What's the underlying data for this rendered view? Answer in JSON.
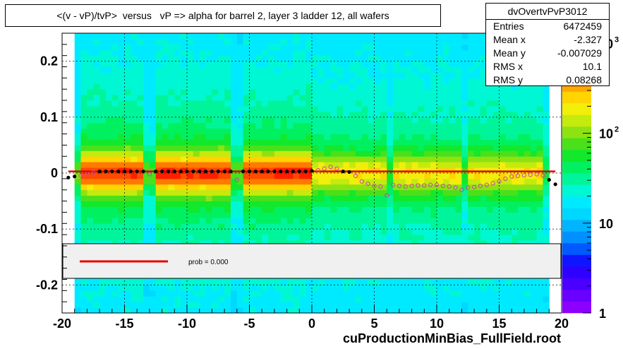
{
  "title": "<(v - vP)/tvP>  versus   vP => alpha for barrel 2, layer 3 ladder 12, all wafers",
  "stats": {
    "name": "dvOvertvPvP3012",
    "rows": [
      {
        "label": "Entries",
        "value": "6472459"
      },
      {
        "label": "Mean x",
        "value": "-2.327"
      },
      {
        "label": "Mean y",
        "value": "-0.007029"
      },
      {
        "label": "RMS x",
        "value": "10.1"
      },
      {
        "label": "RMS y",
        "value": "0.08268"
      }
    ]
  },
  "legend": {
    "label": "prob = 0.000",
    "line_color": "#e60000"
  },
  "footer": "cuProductionMinBias_FullField.root",
  "colorbar": {
    "labels": [
      "1",
      "10",
      "10",
      "10"
    ],
    "exponents": [
      "",
      "",
      "2",
      "3"
    ],
    "colors": [
      "#8c00ff",
      "#6a00ff",
      "#4a00ff",
      "#2d00ff",
      "#0f16ff",
      "#005aff",
      "#0090ff",
      "#00b4ff",
      "#00d7ff",
      "#00eaff",
      "#00f7d4",
      "#00f59a",
      "#00f060",
      "#12e82c",
      "#4ae01a",
      "#8de212",
      "#c4ea0e",
      "#f2ee0a",
      "#ffd400",
      "#ffa800",
      "#ff7a00",
      "#ff4a00",
      "#ff1e00",
      "#e60000"
    ]
  },
  "colors": {
    "profile_points": "#000000",
    "profile_open": "#cc44aa",
    "fit_line": "#e60000",
    "legend_fill": "#f0f0f0"
  },
  "chart_data": {
    "type": "heatmap",
    "title": "<(v - vP)/tvP>  versus   vP => alpha for barrel 2, layer 3 ladder 12, all wafers",
    "xlabel": "",
    "ylabel": "",
    "xlim": [
      -20,
      20
    ],
    "ylim": [
      -0.25,
      0.25
    ],
    "x_ticks": [
      "-20",
      "-15",
      "-10",
      "-5",
      "0",
      "5",
      "10",
      "15",
      "20"
    ],
    "y_ticks": [
      "-0.2",
      "-0.1",
      "0",
      "0.1",
      "0.2"
    ],
    "z_scale": "log",
    "z_range": [
      1,
      1300
    ],
    "grid": true,
    "profile": {
      "name": "profile",
      "x": [
        -19.5,
        -19.0,
        -18.5,
        -18.0,
        -17.5,
        -17.0,
        -16.5,
        -16.0,
        -15.5,
        -15.0,
        -14.5,
        -14.0,
        -13.5,
        -13.0,
        -12.5,
        -12.0,
        -11.5,
        -11.0,
        -10.5,
        -10.0,
        -9.5,
        -9.0,
        -8.5,
        -8.0,
        -7.5,
        -7.0,
        -6.5,
        -6.0,
        -5.5,
        -5.0,
        -4.5,
        -4.0,
        -3.5,
        -3.0,
        -2.5,
        -2.0,
        -1.5,
        -1.0,
        -0.5,
        0.0,
        0.5,
        1.0,
        1.5,
        2.0,
        2.5,
        3.0,
        3.5,
        4.0,
        4.5,
        5.0,
        5.5,
        6.0,
        6.5,
        7.0,
        7.5,
        8.0,
        8.5,
        9.0,
        9.5,
        10.0,
        10.5,
        11.0,
        11.5,
        12.0,
        12.5,
        13.0,
        13.5,
        14.0,
        14.5,
        15.0,
        15.5,
        16.0,
        16.5,
        17.0,
        17.5,
        18.0,
        18.5,
        19.0,
        19.5
      ],
      "y": [
        -0.008,
        -0.006,
        -0.005,
        -0.002,
        0.001,
        0.003,
        0.003,
        0.003,
        0.003,
        0.003,
        0.003,
        0.003,
        0.003,
        -0.002,
        0.003,
        0.003,
        0.003,
        0.003,
        0.003,
        0.003,
        0.003,
        0.003,
        0.003,
        0.003,
        0.003,
        0.003,
        0.003,
        -0.012,
        0.003,
        0.003,
        0.003,
        0.003,
        0.003,
        0.003,
        0.003,
        0.003,
        0.003,
        0.003,
        0.003,
        0.004,
        0.005,
        0.008,
        0.011,
        0.008,
        0.003,
        0.002,
        -0.005,
        -0.015,
        -0.019,
        -0.023,
        -0.024,
        -0.04,
        -0.021,
        -0.023,
        -0.024,
        -0.023,
        -0.022,
        -0.022,
        -0.021,
        -0.021,
        -0.023,
        -0.024,
        -0.026,
        -0.03,
        -0.026,
        -0.025,
        -0.023,
        -0.021,
        -0.018,
        -0.015,
        -0.01,
        -0.006,
        -0.005,
        -0.004,
        -0.003,
        -0.002,
        -0.004,
        -0.012,
        -0.02
      ]
    },
    "fit": {
      "name": "fit",
      "x": [
        -19.5,
        19.5
      ],
      "y": [
        0.003,
        0.003
      ]
    }
  }
}
